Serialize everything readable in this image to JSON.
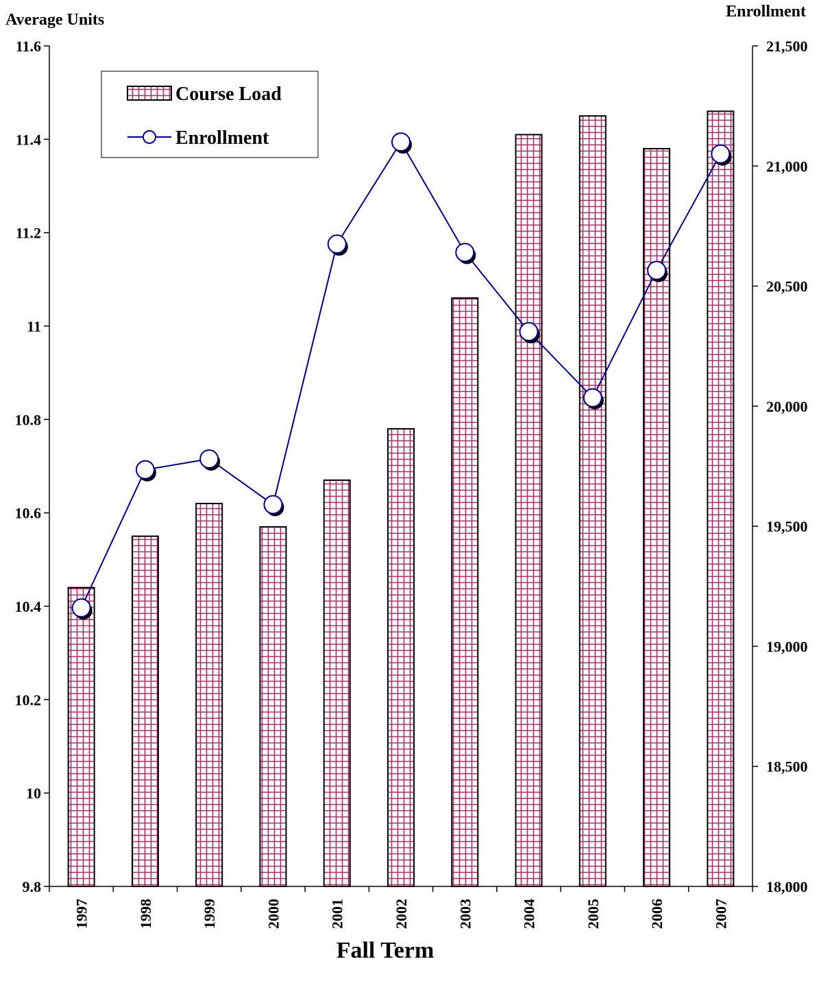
{
  "chart_data": {
    "type": "bar",
    "title": "",
    "xlabel": "Fall Term",
    "ylabel_left": "Average Units",
    "ylabel_right": "Enrollment",
    "categories": [
      "1997",
      "1998",
      "1999",
      "2000",
      "2001",
      "2002",
      "2003",
      "2004",
      "2005",
      "2006",
      "2007"
    ],
    "ylim_left": [
      9.8,
      11.6
    ],
    "yticks_left": [
      "9.8",
      "10",
      "10.2",
      "10.4",
      "10.6",
      "10.8",
      "11",
      "11.2",
      "11.4",
      "11.6"
    ],
    "ylim_right": [
      18000,
      21500
    ],
    "yticks_right": [
      "18,000",
      "18,500",
      "19,000",
      "19,500",
      "20,000",
      "20,500",
      "21,000",
      "21,500"
    ],
    "grid": false,
    "legend_position": "top-left",
    "series": [
      {
        "name": "Course Load",
        "type": "bar",
        "axis": "left",
        "values": [
          10.44,
          10.55,
          10.62,
          10.57,
          10.67,
          10.78,
          11.06,
          11.41,
          11.45,
          11.38,
          11.46
        ]
      },
      {
        "name": "Enrollment",
        "type": "line",
        "axis": "right",
        "values": [
          19160,
          19735,
          19780,
          19590,
          20675,
          21100,
          20640,
          20310,
          20035,
          20565,
          21050
        ]
      }
    ],
    "colors": {
      "bar_line": "#a0306a",
      "bar_fill": "#ffffff",
      "line": "#000080",
      "marker_fill": "#ffffff"
    }
  }
}
